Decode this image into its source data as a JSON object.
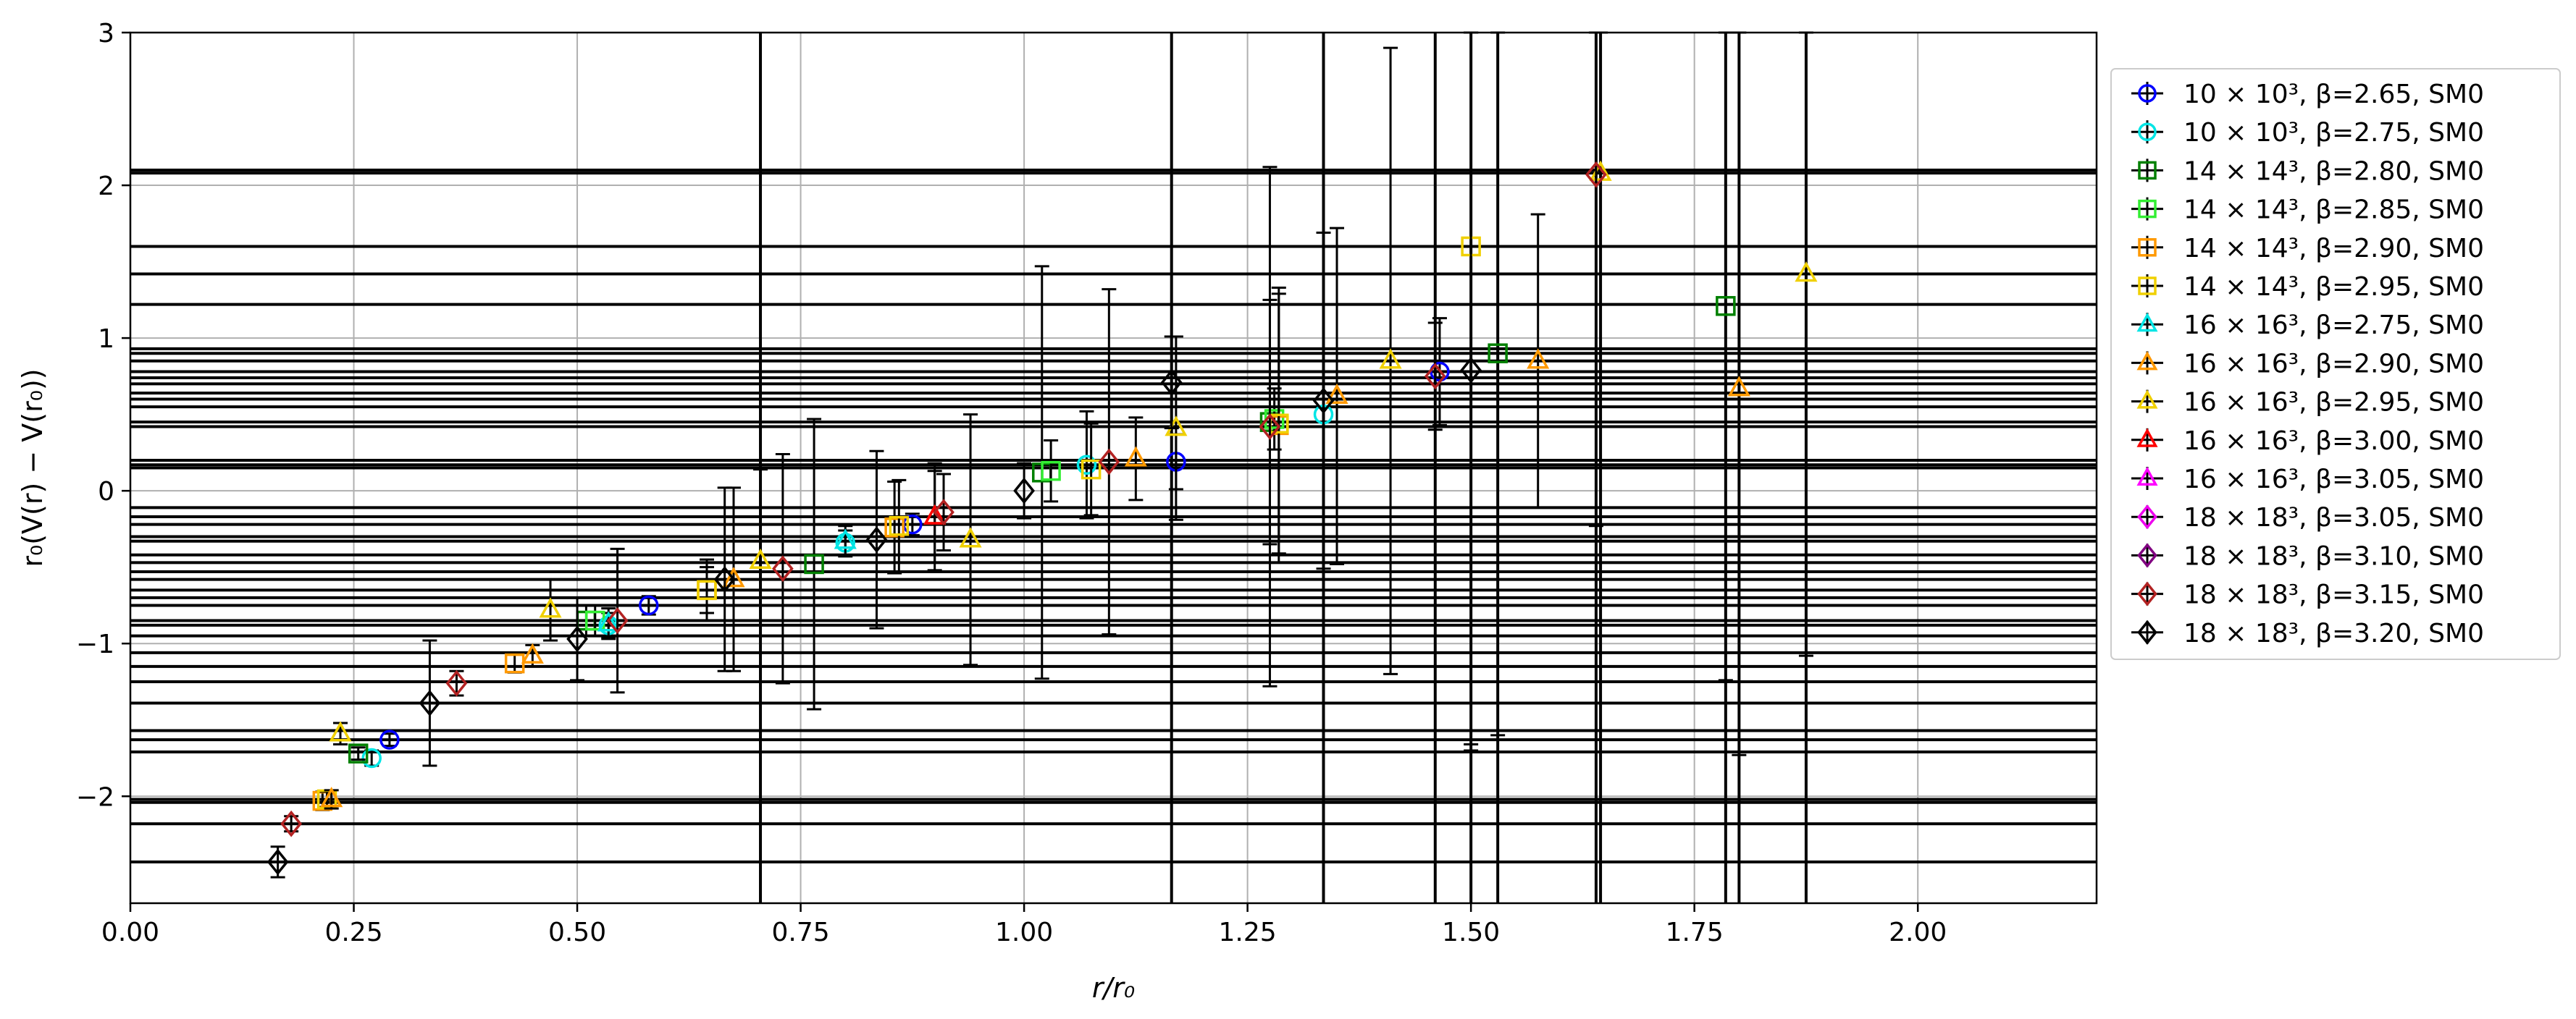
{
  "chart_data": {
    "type": "scatter",
    "xlabel": "r/r₀",
    "ylabel": "r₀(V(r) − V(r₀))",
    "xlim": [
      0.0,
      2.2
    ],
    "ylim": [
      -2.7,
      3.0
    ],
    "xticks": [
      "0.00",
      "0.25",
      "0.50",
      "0.75",
      "1.00",
      "1.25",
      "1.50",
      "1.75",
      "2.00"
    ],
    "xtick_values": [
      0,
      0.25,
      0.5,
      0.75,
      1.0,
      1.25,
      1.5,
      1.75,
      2.0
    ],
    "yticks": [
      "−2",
      "−1",
      "0",
      "1",
      "2",
      "3"
    ],
    "ytick_values": [
      -2,
      -1,
      0,
      1,
      2,
      3
    ],
    "grid": true,
    "legend_position": "outside-right",
    "series": [
      {
        "name": "10 × 10³, β=2.65, SM0",
        "marker": "circle",
        "color": "#0000ff",
        "points": [
          [
            0.29,
            -1.63,
            0.04
          ],
          [
            0.58,
            -0.75,
            0.06
          ],
          [
            0.875,
            -0.22,
            0.07
          ],
          [
            1.17,
            0.19,
            0.18
          ],
          [
            1.465,
            0.78,
            0.35
          ]
        ]
      },
      {
        "name": "10 × 10³, β=2.75, SM0",
        "marker": "circle",
        "color": "#00e5e5",
        "points": [
          [
            0.27,
            -1.75,
            0.05
          ],
          [
            0.535,
            -0.88,
            0.08
          ],
          [
            0.8,
            -0.34,
            0.08
          ],
          [
            1.07,
            0.17,
            0.35
          ],
          [
            1.335,
            0.5,
            0.35
          ]
        ]
      },
      {
        "name": "14 × 14³, β=2.80, SM0",
        "marker": "square",
        "color": "#008000",
        "points": [
          [
            0.255,
            -1.72,
            0.04
          ],
          [
            0.51,
            -0.85,
            0.1
          ],
          [
            0.765,
            -0.48,
            0.95
          ],
          [
            1.02,
            0.12,
            1.35
          ],
          [
            1.275,
            0.45,
            0.8
          ],
          [
            1.53,
            0.9,
            2.5
          ],
          [
            1.785,
            1.21,
            2.45
          ]
        ]
      },
      {
        "name": "14 × 14³, β=2.85, SM0",
        "marker": "square",
        "color": "#33ee33",
        "points": [
          [
            0.52,
            -0.85,
            0.1
          ],
          [
            1.03,
            0.13,
            0.2
          ],
          [
            1.28,
            0.47,
            0.2
          ]
        ]
      },
      {
        "name": "14 × 14³, β=2.90, SM0",
        "marker": "square",
        "color": "#ff9900",
        "points": [
          [
            0.215,
            -2.03,
            0.06
          ],
          [
            0.43,
            -1.13,
            0.06
          ],
          [
            0.645,
            -0.65,
            0.15
          ],
          [
            0.855,
            -0.24,
            0.3
          ],
          [
            1.285,
            0.43,
            0.9
          ]
        ]
      },
      {
        "name": "14 × 14³, β=2.95, SM0",
        "marker": "square",
        "color": "#f0d000",
        "points": [
          [
            0.22,
            -2.02,
            0.05
          ],
          [
            0.645,
            -0.65,
            0.2
          ],
          [
            0.86,
            -0.23,
            0.3
          ],
          [
            1.075,
            0.14,
            0.3
          ],
          [
            1.285,
            0.44,
            0.85
          ],
          [
            1.5,
            1.6,
            3.3
          ]
        ]
      },
      {
        "name": "16 × 16³, β=2.75, SM0",
        "marker": "triangle",
        "color": "#00e5e5",
        "points": [
          [
            0.535,
            -0.87,
            0.1
          ],
          [
            0.8,
            -0.33,
            0.1
          ]
        ]
      },
      {
        "name": "16 × 16³, β=2.90, SM0",
        "marker": "triangle",
        "color": "#ff9900",
        "points": [
          [
            0.225,
            -2.02,
            0.06
          ],
          [
            0.45,
            -1.08,
            0.07
          ],
          [
            0.675,
            -0.58,
            0.6
          ],
          [
            0.9,
            -0.17,
            0.35
          ],
          [
            1.125,
            0.21,
            0.27
          ],
          [
            1.35,
            0.62,
            1.1
          ],
          [
            1.575,
            0.85,
            0.96
          ],
          [
            1.8,
            0.67,
            2.4
          ]
        ]
      },
      {
        "name": "16 × 16³, β=2.95, SM0",
        "marker": "triangle",
        "color": "#f0d000",
        "points": [
          [
            0.235,
            -1.59,
            0.07
          ],
          [
            0.47,
            -0.78,
            0.2
          ],
          [
            0.705,
            -0.46,
            0.6
          ],
          [
            0.94,
            -0.32,
            0.82
          ],
          [
            1.17,
            0.41,
            0.6
          ],
          [
            1.41,
            0.85,
            2.05
          ],
          [
            1.645,
            2.08,
            2.3
          ],
          [
            1.875,
            1.42,
            2.5
          ]
        ]
      },
      {
        "name": "16 × 16³, β=3.00, SM0",
        "marker": "triangle",
        "color": "#ff0000",
        "points": [
          [
            0.9,
            -0.17,
            0.3
          ]
        ]
      },
      {
        "name": "16 × 16³, β=3.05, SM0",
        "marker": "triangle",
        "color": "#ff00ff",
        "points": []
      },
      {
        "name": "18 × 18³, β=3.05, SM0",
        "marker": "diamond",
        "color": "#ee00ee",
        "points": []
      },
      {
        "name": "18 × 18³, β=3.10, SM0",
        "marker": "diamond",
        "color": "#800080",
        "points": []
      },
      {
        "name": "18 × 18³, β=3.15, SM0",
        "marker": "diamond",
        "color": "#b22222",
        "points": [
          [
            0.18,
            -2.18,
            0.05
          ],
          [
            0.365,
            -1.26,
            0.08
          ],
          [
            0.545,
            -0.85,
            0.47
          ],
          [
            0.73,
            -0.51,
            0.75
          ],
          [
            0.91,
            -0.14,
            0.25
          ],
          [
            1.095,
            0.19,
            1.13
          ],
          [
            1.275,
            0.42,
            1.7
          ],
          [
            1.46,
            0.75,
            0.35
          ],
          [
            1.64,
            2.07,
            2.3
          ]
        ]
      },
      {
        "name": "18 × 18³, β=3.20, SM0",
        "marker": "diamond",
        "color": "#000000",
        "points": [
          [
            0.165,
            -2.43,
            0.1
          ],
          [
            0.335,
            -1.39,
            0.41
          ],
          [
            0.5,
            -0.97,
            0.27
          ],
          [
            0.665,
            -0.58,
            0.6
          ],
          [
            0.835,
            -0.32,
            0.58
          ],
          [
            1.0,
            0.0,
            0.18
          ],
          [
            1.165,
            0.71,
            0.3
          ],
          [
            1.335,
            0.59,
            1.1
          ],
          [
            1.5,
            0.79,
            2.45
          ]
        ]
      }
    ],
    "legend_labels": [
      "10 × 10³, β=2.65, SM0",
      "10 × 10³, β=2.75, SM0",
      "14 × 14³, β=2.80, SM0",
      "14 × 14³, β=2.85, SM0",
      "14 × 14³, β=2.90, SM0",
      "14 × 14³, β=2.95, SM0",
      "16 × 16³, β=2.75, SM0",
      "16 × 16³, β=2.90, SM0",
      "16 × 16³, β=2.95, SM0",
      "16 × 16³, β=3.00, SM0",
      "16 × 16³, β=3.05, SM0",
      "18 × 18³, β=3.05, SM0",
      "18 × 18³, β=3.10, SM0",
      "18 × 18³, β=3.15, SM0",
      "18 × 18³, β=3.20, SM0"
    ],
    "horizontal_bars_y": [
      2.1,
      2.08,
      1.6,
      1.42,
      1.22,
      0.93,
      0.9,
      0.85,
      0.78,
      0.74,
      0.7,
      0.64,
      0.6,
      0.55,
      0.45,
      0.42,
      0.2,
      0.17,
      0.15,
      -0.11,
      -0.17,
      -0.22,
      -0.3,
      -0.33,
      -0.42,
      -0.47,
      -0.53,
      -0.58,
      -0.65,
      -0.7,
      -0.75,
      -0.85,
      -0.88,
      -0.95,
      -1.06,
      -1.15,
      -1.25,
      -1.39,
      -1.57,
      -1.63,
      -1.71,
      -2.02,
      -2.04,
      -2.18,
      -2.43
    ],
    "vertical_bars_x": [
      0.705,
      1.165,
      1.335,
      1.46,
      1.5,
      1.53,
      1.64,
      1.645,
      1.785,
      1.8,
      1.875
    ]
  }
}
